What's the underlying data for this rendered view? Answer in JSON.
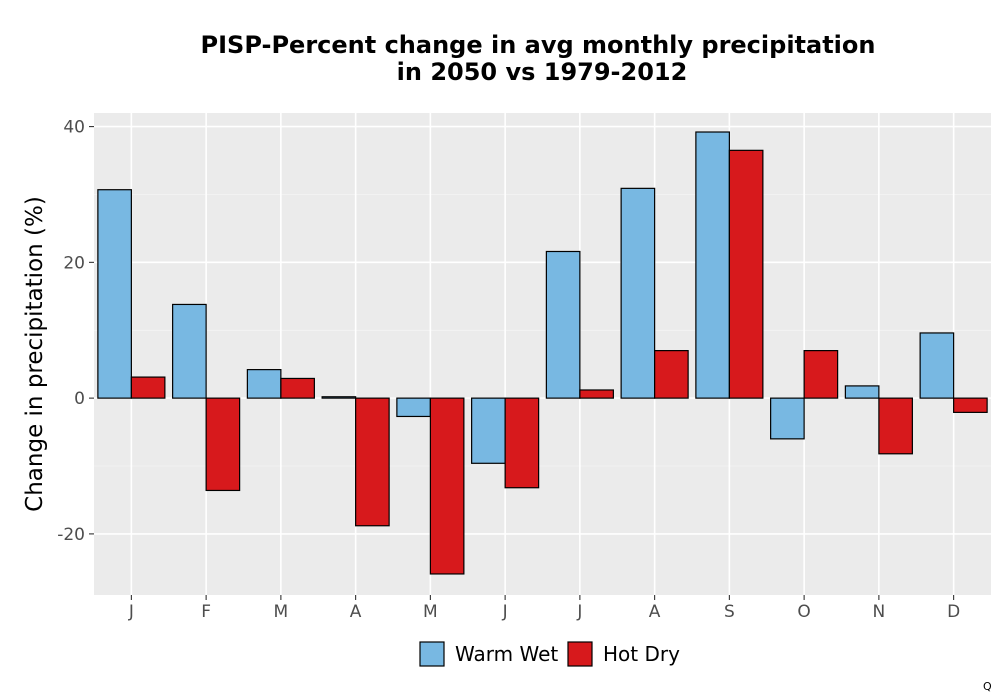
{
  "chart_data": {
    "type": "bar",
    "title_line1": "PISP-Percent change in avg monthly precipitation",
    "title_line2": "in 2050 vs 1979-2012",
    "xlabel": "",
    "ylabel": "Change in precipitation (%)",
    "categories": [
      "J",
      "F",
      "M",
      "A",
      "M",
      "J",
      "J",
      "A",
      "S",
      "O",
      "N",
      "D"
    ],
    "series": [
      {
        "name": "Warm Wet",
        "color": "#78b8e2",
        "values": [
          30.7,
          13.8,
          4.2,
          0.2,
          -2.7,
          -9.6,
          21.6,
          30.9,
          39.2,
          -6.0,
          1.8,
          9.6
        ]
      },
      {
        "name": "Hot Dry",
        "color": "#d7191c",
        "values": [
          3.1,
          -13.6,
          2.9,
          -18.8,
          -25.9,
          -13.2,
          1.2,
          7.0,
          36.5,
          7.0,
          -8.2,
          -2.1
        ]
      }
    ],
    "ylim": [
      -29,
      42
    ],
    "yticks": [
      -20,
      0,
      20,
      40
    ],
    "grid": true,
    "legend_position": "bottom"
  },
  "corner_mark": "Q"
}
